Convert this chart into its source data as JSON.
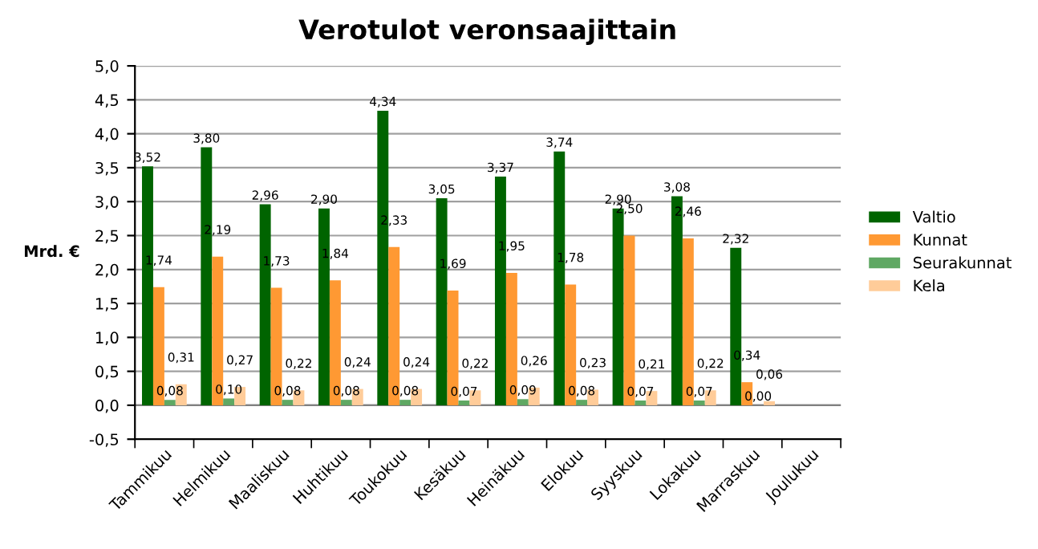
{
  "chart_data": {
    "type": "bar",
    "title": "Verotulot veronsaajittain",
    "ylabel": "Mrd. €",
    "categories": [
      "Tammikuu",
      "Helmikuu",
      "Maaliskuu",
      "Huhtikuu",
      "Toukokuu",
      "Kesäkuu",
      "Heinäkuu",
      "Elokuu",
      "Syyskuu",
      "Lokakuu",
      "Marraskuu",
      "Joulukuu"
    ],
    "series": [
      {
        "name": "Valtio",
        "color": "#006400",
        "values": [
          3.52,
          3.8,
          2.96,
          2.9,
          4.34,
          3.05,
          3.37,
          3.74,
          2.9,
          3.08,
          2.32,
          null
        ],
        "value_labels": [
          "3,52",
          "3,80",
          "2,96",
          "2,90",
          "4,34",
          "3,05",
          "3,37",
          "3,74",
          "2,90",
          "3,08",
          "2,32",
          null
        ]
      },
      {
        "name": "Kunnat",
        "color": "#ff9933",
        "values": [
          1.74,
          2.19,
          1.73,
          1.84,
          2.33,
          1.69,
          1.95,
          1.78,
          2.5,
          2.46,
          0.34,
          null
        ],
        "value_labels": [
          "1,74",
          "2,19",
          "1,73",
          "1,84",
          "2,33",
          "1,69",
          "1,95",
          "1,78",
          "2,50",
          "2,46",
          "0,34",
          null
        ]
      },
      {
        "name": "Seurakunnat",
        "color": "#5fa863",
        "values": [
          0.08,
          0.1,
          0.08,
          0.08,
          0.08,
          0.07,
          0.09,
          0.08,
          0.07,
          0.07,
          0.0,
          null
        ],
        "value_labels": [
          "0,08",
          "0,10",
          "0,08",
          "0,08",
          "0,08",
          "0,07",
          "0,09",
          "0,08",
          "0,07",
          "0,07",
          "0,00",
          null
        ]
      },
      {
        "name": "Kela",
        "color": "#ffcc99",
        "values": [
          0.31,
          0.27,
          0.22,
          0.24,
          0.24,
          0.22,
          0.26,
          0.23,
          0.21,
          0.22,
          0.06,
          null
        ],
        "value_labels": [
          "0,31",
          "0,27",
          "0,22",
          "0,24",
          "0,24",
          "0,22",
          "0,26",
          "0,23",
          "0,21",
          "0,22",
          "0,06",
          null
        ]
      }
    ],
    "ylim": [
      -0.5,
      5.0
    ],
    "yticks": [
      {
        "value": -0.5,
        "label": "-0,5"
      },
      {
        "value": 0,
        "label": "0,0"
      },
      {
        "value": 0.5,
        "label": "0,5"
      },
      {
        "value": 1.0,
        "label": "1,0"
      },
      {
        "value": 1.5,
        "label": "1,5"
      },
      {
        "value": 2.0,
        "label": "2,0"
      },
      {
        "value": 2.5,
        "label": "2,5"
      },
      {
        "value": 3.0,
        "label": "3,0"
      },
      {
        "value": 3.5,
        "label": "3,5"
      },
      {
        "value": 4.0,
        "label": "4,0"
      },
      {
        "value": 4.5,
        "label": "4,5"
      },
      {
        "value": 5.0,
        "label": "5,0"
      }
    ],
    "grid": "y",
    "legend": "right"
  }
}
